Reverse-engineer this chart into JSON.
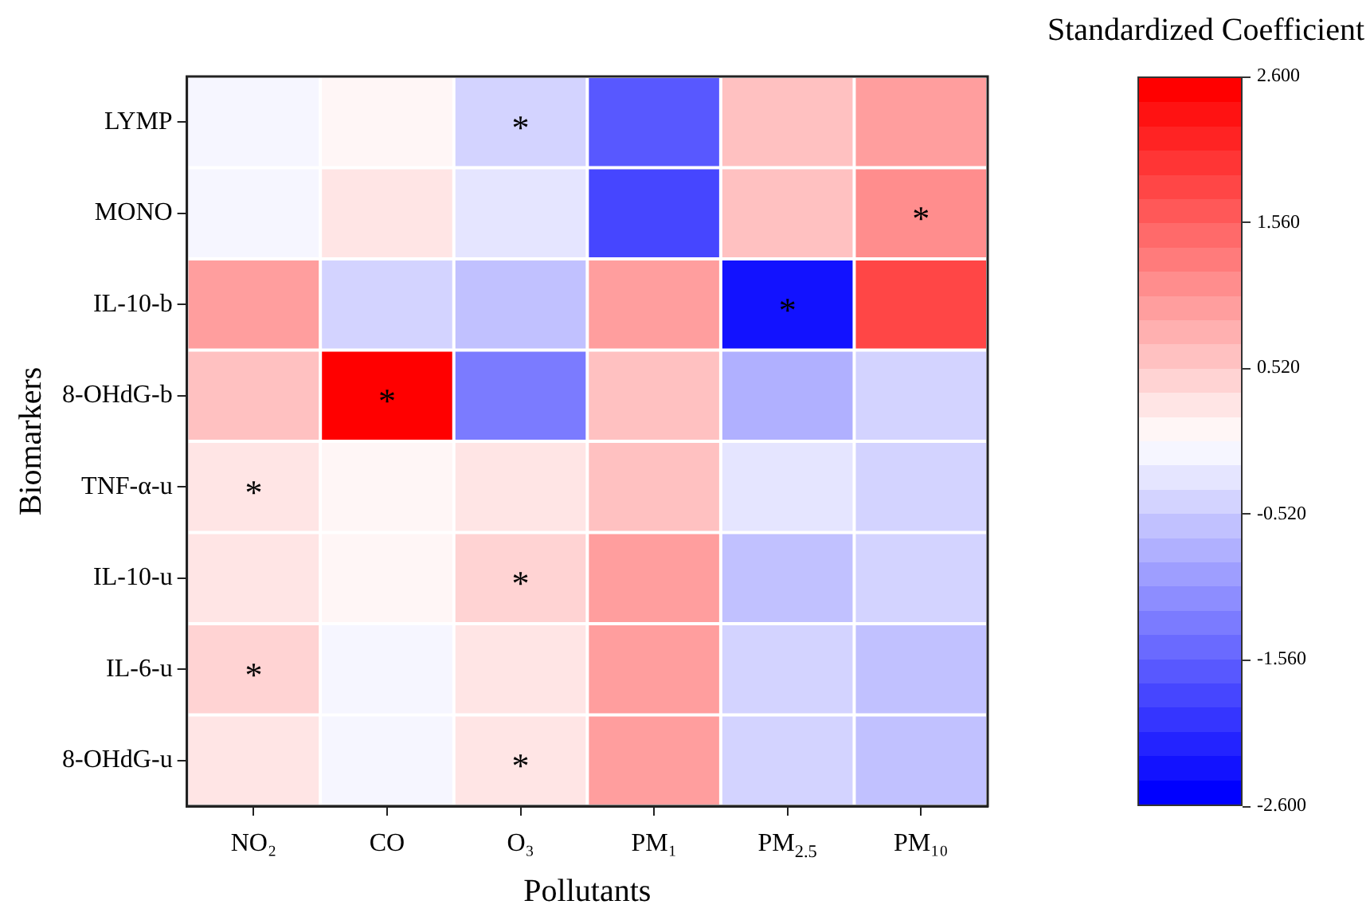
{
  "chart_data": {
    "type": "heatmap",
    "xlabel": "Pollutants",
    "ylabel": "Biomarkers",
    "clabel": "Standardized Coefficient",
    "categories": [
      "NO₂",
      "CO",
      "O₃",
      "PM₁",
      "PM$_{2.5}$",
      "PM₁₀"
    ],
    "y_categories": [
      "LYMP",
      "MONO",
      "IL-10-b",
      "8-OHdG-b",
      "TNF-α-u",
      "IL-10-u",
      "IL-6-u",
      "8-OHdG-u"
    ],
    "cells": [
      [
        -0.09,
        0.09,
        -0.43,
        -1.65,
        0.61,
        1.0
      ],
      [
        -0.09,
        0.26,
        -0.26,
        -1.82,
        0.61,
        1.2
      ],
      [
        1.0,
        -0.43,
        -0.6,
        1.0,
        -2.3,
        1.8
      ],
      [
        0.61,
        2.5,
        -1.3,
        0.61,
        -0.78,
        -0.43
      ],
      [
        0.26,
        0.09,
        0.26,
        0.61,
        -0.26,
        -0.43
      ],
      [
        0.26,
        0.09,
        0.43,
        1.0,
        -0.6,
        -0.43
      ],
      [
        0.43,
        -0.09,
        0.26,
        1.0,
        -0.43,
        -0.6
      ],
      [
        0.26,
        -0.09,
        0.26,
        1.0,
        -0.43,
        -0.6
      ]
    ],
    "cell_labels": [
      [
        null,
        null,
        "*",
        null,
        null,
        null
      ],
      [
        null,
        null,
        null,
        null,
        null,
        "*"
      ],
      [
        null,
        null,
        null,
        null,
        "*",
        null
      ],
      [
        null,
        "*",
        null,
        null,
        null,
        null
      ],
      [
        "*",
        null,
        null,
        null,
        null,
        null
      ],
      [
        null,
        null,
        "*",
        null,
        null,
        null
      ],
      [
        "*",
        null,
        null,
        null,
        null,
        null
      ],
      [
        null,
        null,
        "*",
        null,
        null,
        null
      ]
    ],
    "clim": [
      -2.6,
      2.6
    ],
    "cticks": [
      {
        "value": 2.6,
        "label": "2.600"
      },
      {
        "value": 1.56,
        "label": "1.560"
      },
      {
        "value": 0.52,
        "label": "0.520"
      },
      {
        "value": -0.52,
        "label": "-0.520"
      },
      {
        "value": -1.56,
        "label": "-1.560"
      },
      {
        "value": -2.6,
        "label": "-2.600"
      }
    ]
  }
}
